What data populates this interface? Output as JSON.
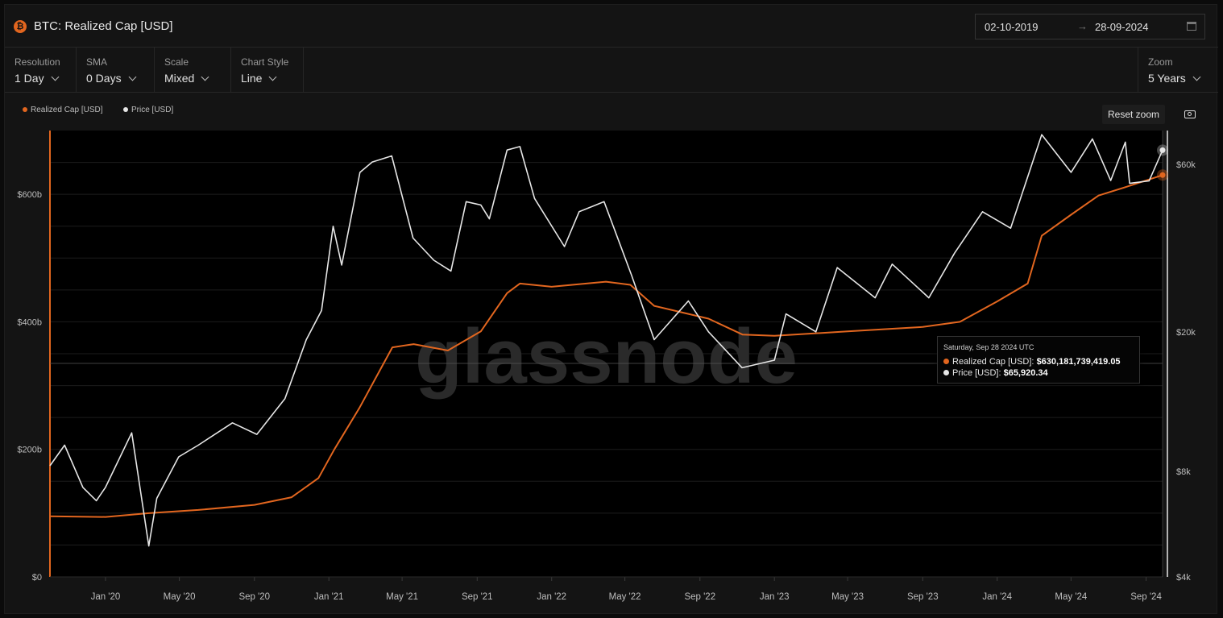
{
  "header": {
    "title": "BTC: Realized Cap [USD]",
    "date_from": "02-10-2019",
    "date_arrow": "→",
    "date_to": "28-09-2024",
    "calendar_icon": "calendar-icon",
    "coin_icon": "bitcoin-icon"
  },
  "controls": {
    "resolution": {
      "label": "Resolution",
      "value": "1 Day"
    },
    "sma": {
      "label": "SMA",
      "value": "0 Days"
    },
    "scale": {
      "label": "Scale",
      "value": "Mixed"
    },
    "chart_style": {
      "label": "Chart Style",
      "value": "Line"
    },
    "zoom": {
      "label": "Zoom",
      "value": "5 Years"
    },
    "reset_zoom": "Reset zoom",
    "camera_icon": "camera-icon"
  },
  "watermark": "glassnode",
  "colors": {
    "realized_cap": "#e2661f",
    "price": "#e6e6e6",
    "accent": "#e2661f"
  },
  "tooltip": {
    "date": "Saturday, Sep 28 2024 UTC",
    "realized_cap_label": "Realized Cap [USD]:",
    "realized_cap_value": "$630,181,739,419.05",
    "price_label": "Price [USD]:",
    "price_value": "$65,920.34"
  },
  "chart_data": {
    "type": "line",
    "legend_position": "top-left",
    "grid": true,
    "x_ticks": [
      "Jan '20",
      "May '20",
      "Sep '20",
      "Jan '21",
      "May '21",
      "Sep '21",
      "Jan '22",
      "May '22",
      "Sep '22",
      "Jan '23",
      "May '23",
      "Sep '23",
      "Jan '24",
      "May '24",
      "Sep '24"
    ],
    "x_tick_dates": [
      "2020-01-01",
      "2020-05-01",
      "2020-09-01",
      "2021-01-01",
      "2021-05-01",
      "2021-09-01",
      "2022-01-01",
      "2022-05-01",
      "2022-09-01",
      "2023-01-01",
      "2023-05-01",
      "2023-09-01",
      "2024-01-01",
      "2024-05-01",
      "2024-09-01"
    ],
    "x_range": [
      "2019-10-02",
      "2024-09-28"
    ],
    "y_left": {
      "scale": "linear",
      "range": [
        0,
        700000000000
      ],
      "ticks": [
        0,
        200000000000,
        400000000000,
        600000000000
      ],
      "tick_labels": [
        "$0",
        "$200b",
        "$400b",
        "$600b"
      ]
    },
    "y_right": {
      "scale": "log",
      "range": [
        4000,
        75000
      ],
      "ticks": [
        4000,
        8000,
        20000,
        60000
      ],
      "tick_labels": [
        "$4k",
        "$8k",
        "$20k",
        "$60k"
      ]
    },
    "series": [
      {
        "name": "Realized Cap [USD]",
        "axis": "left",
        "color": "#e2661f",
        "points": [
          [
            "2019-10-02",
            95000000000
          ],
          [
            "2020-01-01",
            94000000000
          ],
          [
            "2020-03-12",
            100000000000
          ],
          [
            "2020-06-01",
            105000000000
          ],
          [
            "2020-09-01",
            113000000000
          ],
          [
            "2020-11-01",
            125000000000
          ],
          [
            "2020-12-15",
            155000000000
          ],
          [
            "2021-01-10",
            200000000000
          ],
          [
            "2021-02-20",
            265000000000
          ],
          [
            "2021-04-15",
            360000000000
          ],
          [
            "2021-05-20",
            365000000000
          ],
          [
            "2021-07-15",
            355000000000
          ],
          [
            "2021-09-07",
            385000000000
          ],
          [
            "2021-10-20",
            445000000000
          ],
          [
            "2021-11-10",
            460000000000
          ],
          [
            "2022-01-01",
            455000000000
          ],
          [
            "2022-03-31",
            463000000000
          ],
          [
            "2022-05-10",
            458000000000
          ],
          [
            "2022-06-18",
            425000000000
          ],
          [
            "2022-09-15",
            405000000000
          ],
          [
            "2022-11-10",
            380000000000
          ],
          [
            "2023-01-01",
            378000000000
          ],
          [
            "2023-05-01",
            385000000000
          ],
          [
            "2023-09-01",
            392000000000
          ],
          [
            "2023-11-01",
            400000000000
          ],
          [
            "2024-01-01",
            432000000000
          ],
          [
            "2024-02-20",
            460000000000
          ],
          [
            "2024-03-14",
            535000000000
          ],
          [
            "2024-05-01",
            568000000000
          ],
          [
            "2024-06-15",
            598000000000
          ],
          [
            "2024-08-01",
            612000000000
          ],
          [
            "2024-09-28",
            630181739419
          ]
        ]
      },
      {
        "name": "Price [USD]",
        "axis": "right",
        "color": "#e6e6e6",
        "points": [
          [
            "2019-10-02",
            8300
          ],
          [
            "2019-10-26",
            9500
          ],
          [
            "2019-11-25",
            7200
          ],
          [
            "2019-12-17",
            6600
          ],
          [
            "2020-01-01",
            7200
          ],
          [
            "2020-02-13",
            10300
          ],
          [
            "2020-03-12",
            4900
          ],
          [
            "2020-03-25",
            6700
          ],
          [
            "2020-04-30",
            8800
          ],
          [
            "2020-06-01",
            9500
          ],
          [
            "2020-07-27",
            11000
          ],
          [
            "2020-09-05",
            10200
          ],
          [
            "2020-10-21",
            12900
          ],
          [
            "2020-11-25",
            19000
          ],
          [
            "2020-12-20",
            23000
          ],
          [
            "2021-01-08",
            40000
          ],
          [
            "2021-01-22",
            31000
          ],
          [
            "2021-02-21",
            57000
          ],
          [
            "2021-03-13",
            61000
          ],
          [
            "2021-04-14",
            63500
          ],
          [
            "2021-05-19",
            37000
          ],
          [
            "2021-06-22",
            32000
          ],
          [
            "2021-07-20",
            29800
          ],
          [
            "2021-08-14",
            47000
          ],
          [
            "2021-09-07",
            46000
          ],
          [
            "2021-09-21",
            42000
          ],
          [
            "2021-10-20",
            66000
          ],
          [
            "2021-11-10",
            67500
          ],
          [
            "2021-12-04",
            48000
          ],
          [
            "2022-01-22",
            35000
          ],
          [
            "2022-02-15",
            44000
          ],
          [
            "2022-03-28",
            47000
          ],
          [
            "2022-05-12",
            29000
          ],
          [
            "2022-06-18",
            19000
          ],
          [
            "2022-08-13",
            24500
          ],
          [
            "2022-09-15",
            20000
          ],
          [
            "2022-11-09",
            15800
          ],
          [
            "2023-01-01",
            16600
          ],
          [
            "2023-01-20",
            22500
          ],
          [
            "2023-03-10",
            20000
          ],
          [
            "2023-04-14",
            30500
          ],
          [
            "2023-06-15",
            25000
          ],
          [
            "2023-07-13",
            31200
          ],
          [
            "2023-09-11",
            25000
          ],
          [
            "2023-10-23",
            33500
          ],
          [
            "2023-12-08",
            44000
          ],
          [
            "2024-01-23",
            39500
          ],
          [
            "2024-03-14",
            73000
          ],
          [
            "2024-05-01",
            57000
          ],
          [
            "2024-06-05",
            71000
          ],
          [
            "2024-07-05",
            54000
          ],
          [
            "2024-07-29",
            69500
          ],
          [
            "2024-08-05",
            53000
          ],
          [
            "2024-09-06",
            53900
          ],
          [
            "2024-09-28",
            65920
          ]
        ]
      }
    ]
  }
}
